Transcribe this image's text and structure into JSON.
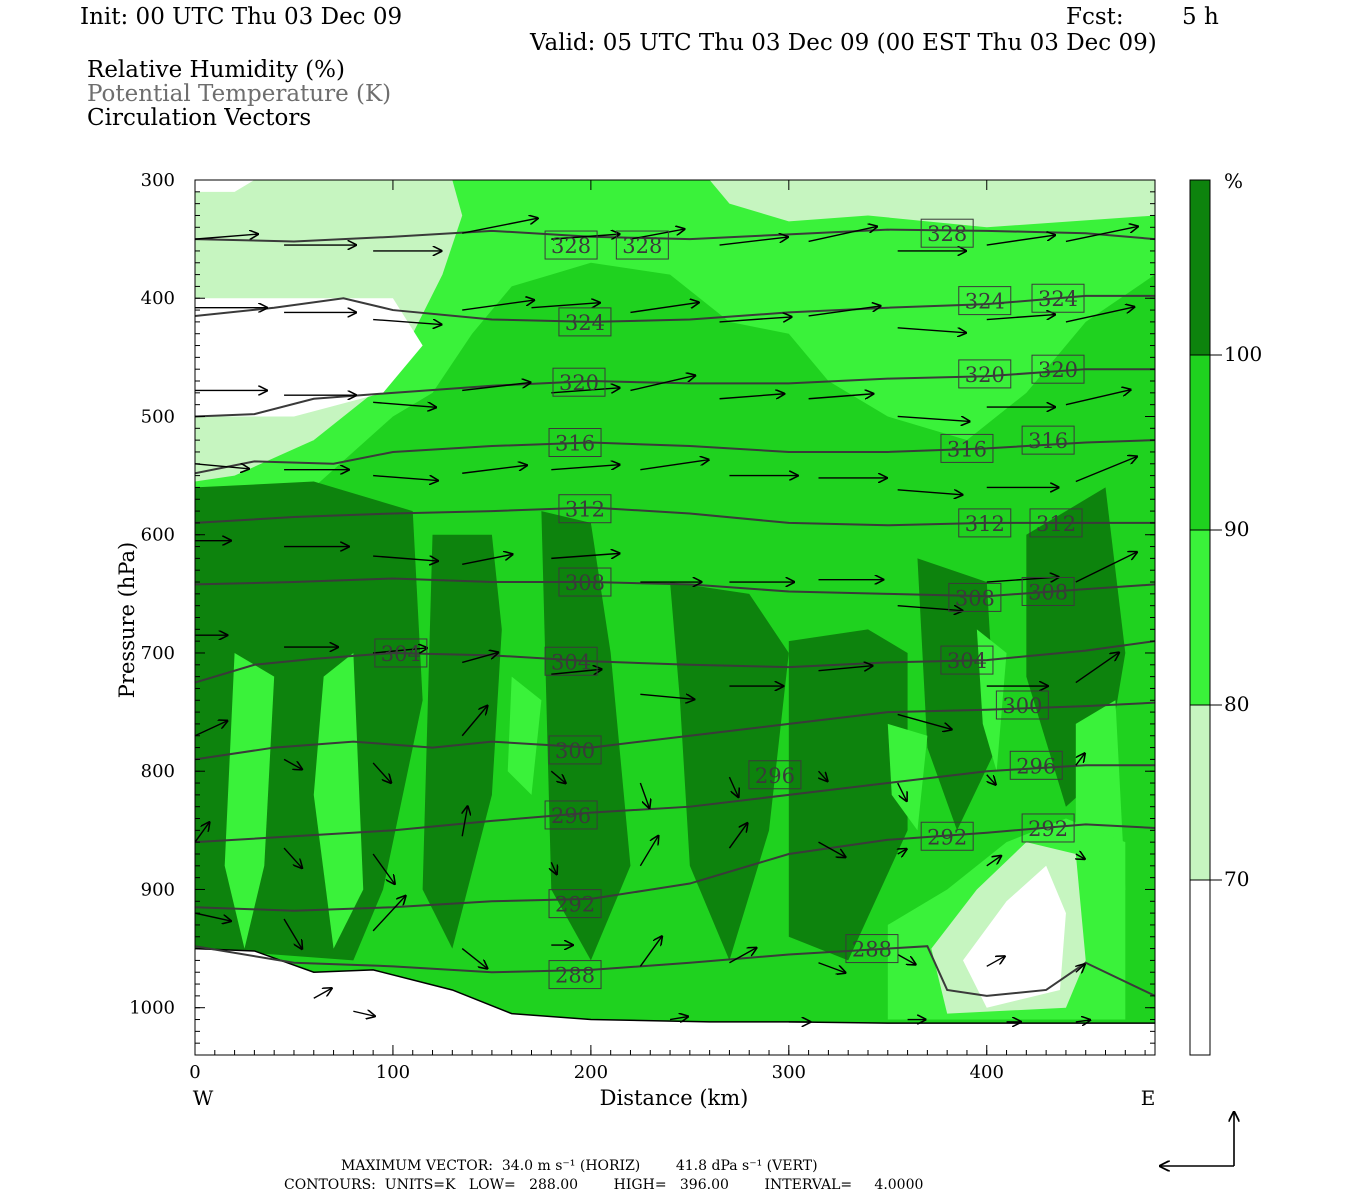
{
  "header": {
    "init": "Init: 00 UTC Thu 03 Dec 09",
    "fcst_label": "Fcst:",
    "fcst_value": "5 h",
    "valid": "Valid: 05 UTC Thu 03 Dec 09 (00 EST Thu 03 Dec 09)"
  },
  "fields": {
    "rh": "Relative Humidity (%)",
    "theta": "Potential Temperature (K)",
    "vectors": "Circulation Vectors"
  },
  "footer": {
    "max_vector": "MAXIMUM VECTOR:  34.0 m s⁻¹ (HORIZ)        41.8 dPa s⁻¹ (VERT)",
    "contours": "CONTOURS:  UNITS=K   LOW=   288.00        HIGH=   396.00        INTERVAL=     4.0000"
  },
  "colors": {
    "rh_70_80": "#c6f5c0",
    "rh_80_90": "#3af23a",
    "rh_90_100": "#1fd21f",
    "rh_100": "#0d830d",
    "theta_line": "#3a3a3a",
    "vector": "#000000"
  },
  "chart_data": {
    "type": "heatmap",
    "xlabel": "Distance (km)",
    "ylabel": "Pressure (hPa)",
    "x_left_label": "W",
    "x_right_label": "E",
    "xlim": [
      0,
      485
    ],
    "ylim": [
      1040,
      300
    ],
    "x_ticks": [
      0,
      100,
      200,
      300,
      400
    ],
    "y_ticks": [
      300,
      400,
      500,
      600,
      700,
      800,
      900,
      1000
    ],
    "colorbar": {
      "unit": "%",
      "levels": [
        70,
        80,
        90,
        100
      ],
      "band_colors": [
        "#ffffff",
        "#c6f5c0",
        "#3af23a",
        "#1fd21f",
        "#0d830d"
      ]
    },
    "theta_contours": [
      {
        "value": "328",
        "label_x": [
          190,
          226,
          380
        ],
        "label_y": [
          355,
          355,
          345
        ],
        "points": [
          [
            0,
            350
          ],
          [
            50,
            352
          ],
          [
            100,
            348
          ],
          [
            150,
            343
          ],
          [
            200,
            348
          ],
          [
            250,
            350
          ],
          [
            300,
            346
          ],
          [
            350,
            342
          ],
          [
            400,
            343
          ],
          [
            450,
            345
          ],
          [
            485,
            350
          ]
        ]
      },
      {
        "value": "324",
        "label_x": [
          197,
          399,
          436
        ],
        "label_y": [
          420,
          402,
          400
        ],
        "points": [
          [
            0,
            415
          ],
          [
            40,
            408
          ],
          [
            75,
            400
          ],
          [
            100,
            410
          ],
          [
            150,
            418
          ],
          [
            200,
            420
          ],
          [
            250,
            418
          ],
          [
            300,
            412
          ],
          [
            350,
            408
          ],
          [
            400,
            405
          ],
          [
            450,
            398
          ],
          [
            485,
            398
          ]
        ]
      },
      {
        "value": "320",
        "label_x": [
          194,
          399,
          436
        ],
        "label_y": [
          471,
          464,
          460
        ],
        "points": [
          [
            0,
            500
          ],
          [
            30,
            498
          ],
          [
            60,
            485
          ],
          [
            100,
            480
          ],
          [
            150,
            474
          ],
          [
            200,
            470
          ],
          [
            250,
            472
          ],
          [
            300,
            472
          ],
          [
            350,
            468
          ],
          [
            400,
            466
          ],
          [
            450,
            460
          ],
          [
            485,
            460
          ]
        ]
      },
      {
        "value": "316",
        "label_x": [
          192,
          390,
          431
        ],
        "label_y": [
          522,
          527,
          520
        ],
        "points": [
          [
            0,
            548
          ],
          [
            30,
            538
          ],
          [
            70,
            540
          ],
          [
            100,
            530
          ],
          [
            150,
            525
          ],
          [
            200,
            522
          ],
          [
            250,
            525
          ],
          [
            300,
            530
          ],
          [
            350,
            530
          ],
          [
            400,
            527
          ],
          [
            450,
            522
          ],
          [
            485,
            520
          ]
        ]
      },
      {
        "value": "312",
        "label_x": [
          197,
          399,
          435
        ],
        "label_y": [
          578,
          590,
          590
        ],
        "points": [
          [
            0,
            590
          ],
          [
            50,
            585
          ],
          [
            100,
            582
          ],
          [
            150,
            580
          ],
          [
            200,
            577
          ],
          [
            250,
            582
          ],
          [
            300,
            590
          ],
          [
            350,
            592
          ],
          [
            400,
            590
          ],
          [
            450,
            590
          ],
          [
            485,
            590
          ]
        ]
      },
      {
        "value": "308",
        "label_x": [
          197,
          394,
          431
        ],
        "label_y": [
          640,
          653,
          648
        ],
        "points": [
          [
            0,
            642
          ],
          [
            50,
            640
          ],
          [
            100,
            637
          ],
          [
            150,
            640
          ],
          [
            200,
            640
          ],
          [
            250,
            642
          ],
          [
            300,
            648
          ],
          [
            350,
            650
          ],
          [
            400,
            652
          ],
          [
            450,
            646
          ],
          [
            485,
            642
          ]
        ]
      },
      {
        "value": "304",
        "label_x": [
          104,
          190,
          390
        ],
        "label_y": [
          700,
          707,
          706
        ],
        "points": [
          [
            0,
            725
          ],
          [
            30,
            710
          ],
          [
            60,
            705
          ],
          [
            100,
            700
          ],
          [
            150,
            702
          ],
          [
            200,
            707
          ],
          [
            250,
            710
          ],
          [
            300,
            712
          ],
          [
            350,
            708
          ],
          [
            400,
            706
          ],
          [
            450,
            698
          ],
          [
            485,
            690
          ]
        ]
      },
      {
        "value": "300",
        "label_x": [
          192,
          418
        ],
        "label_y": [
          782,
          744
        ],
        "points": [
          [
            0,
            790
          ],
          [
            40,
            780
          ],
          [
            80,
            775
          ],
          [
            120,
            780
          ],
          [
            150,
            775
          ],
          [
            200,
            780
          ],
          [
            250,
            770
          ],
          [
            300,
            760
          ],
          [
            350,
            750
          ],
          [
            400,
            748
          ],
          [
            450,
            745
          ],
          [
            485,
            742
          ]
        ]
      },
      {
        "value": "296",
        "label_x": [
          190,
          293,
          425
        ],
        "label_y": [
          837,
          803,
          795
        ],
        "points": [
          [
            0,
            860
          ],
          [
            50,
            855
          ],
          [
            100,
            850
          ],
          [
            150,
            842
          ],
          [
            200,
            835
          ],
          [
            250,
            830
          ],
          [
            300,
            820
          ],
          [
            350,
            810
          ],
          [
            400,
            800
          ],
          [
            450,
            795
          ],
          [
            485,
            795
          ]
        ]
      },
      {
        "value": "292",
        "label_x": [
          192,
          380,
          431
        ],
        "label_y": [
          912,
          855,
          848
        ],
        "points": [
          [
            0,
            915
          ],
          [
            50,
            918
          ],
          [
            100,
            915
          ],
          [
            150,
            910
          ],
          [
            200,
            908
          ],
          [
            250,
            895
          ],
          [
            300,
            870
          ],
          [
            350,
            858
          ],
          [
            400,
            852
          ],
          [
            450,
            845
          ],
          [
            485,
            848
          ]
        ]
      },
      {
        "value": "288",
        "label_x": [
          192,
          342
        ],
        "label_y": [
          972,
          950
        ],
        "points": [
          [
            0,
            948
          ],
          [
            50,
            962
          ],
          [
            100,
            965
          ],
          [
            150,
            970
          ],
          [
            200,
            968
          ],
          [
            250,
            962
          ],
          [
            300,
            955
          ],
          [
            350,
            950
          ],
          [
            370,
            948
          ],
          [
            380,
            985
          ],
          [
            400,
            990
          ],
          [
            430,
            985
          ],
          [
            450,
            962
          ],
          [
            485,
            990
          ]
        ]
      }
    ],
    "rh_fields": {
      "unit": "%",
      "regions": [
        {
          "band": "70-80",
          "note": "upper troposphere above ~380 hPa west of 120 km"
        },
        {
          "band": "<70",
          "note": "dry slot 400-500 hPa west of 110 km and near-surface pocket at 380-420 km"
        },
        {
          "band": "90-100",
          "note": "mid and lower troposphere 520-1000 hPa"
        },
        {
          "band": ">100",
          "note": "saturated columns 550-960 hPa"
        }
      ]
    },
    "vectors": [
      [
        0,
        350,
        35,
        -5
      ],
      [
        45,
        355,
        40,
        0
      ],
      [
        90,
        360,
        38,
        0
      ],
      [
        135,
        345,
        42,
        -15
      ],
      [
        180,
        350,
        38,
        -5
      ],
      [
        220,
        350,
        30,
        -10
      ],
      [
        265,
        355,
        38,
        -8
      ],
      [
        310,
        352,
        38,
        -15
      ],
      [
        355,
        360,
        38,
        0
      ],
      [
        400,
        355,
        38,
        -10
      ],
      [
        440,
        352,
        40,
        -15
      ],
      [
        0,
        408,
        40,
        0
      ],
      [
        45,
        412,
        40,
        0
      ],
      [
        90,
        418,
        38,
        5
      ],
      [
        135,
        410,
        40,
        -10
      ],
      [
        170,
        408,
        38,
        -5
      ],
      [
        220,
        412,
        38,
        -10
      ],
      [
        265,
        420,
        40,
        -5
      ],
      [
        310,
        415,
        40,
        -10
      ],
      [
        355,
        425,
        38,
        5
      ],
      [
        400,
        418,
        38,
        -5
      ],
      [
        440,
        420,
        38,
        -15
      ],
      [
        0,
        478,
        40,
        0
      ],
      [
        45,
        482,
        40,
        0
      ],
      [
        90,
        488,
        35,
        5
      ],
      [
        135,
        478,
        38,
        -8
      ],
      [
        180,
        480,
        38,
        -5
      ],
      [
        220,
        478,
        36,
        -15
      ],
      [
        265,
        485,
        36,
        -5
      ],
      [
        310,
        485,
        36,
        -5
      ],
      [
        355,
        500,
        40,
        5
      ],
      [
        400,
        492,
        38,
        0
      ],
      [
        440,
        490,
        36,
        -15
      ],
      [
        0,
        540,
        30,
        5
      ],
      [
        45,
        545,
        36,
        0
      ],
      [
        90,
        550,
        36,
        5
      ],
      [
        135,
        548,
        36,
        -8
      ],
      [
        180,
        545,
        38,
        -5
      ],
      [
        225,
        545,
        38,
        -10
      ],
      [
        270,
        550,
        38,
        0
      ],
      [
        315,
        552,
        38,
        0
      ],
      [
        355,
        562,
        36,
        5
      ],
      [
        400,
        560,
        40,
        0
      ],
      [
        445,
        555,
        34,
        -25
      ],
      [
        0,
        605,
        20,
        0
      ],
      [
        45,
        610,
        36,
        0
      ],
      [
        90,
        618,
        36,
        5
      ],
      [
        135,
        625,
        28,
        -10
      ],
      [
        180,
        620,
        38,
        -5
      ],
      [
        225,
        640,
        34,
        0
      ],
      [
        270,
        640,
        36,
        0
      ],
      [
        315,
        638,
        36,
        0
      ],
      [
        355,
        660,
        36,
        5
      ],
      [
        400,
        640,
        40,
        -5
      ],
      [
        445,
        640,
        34,
        -30
      ],
      [
        0,
        685,
        18,
        0
      ],
      [
        45,
        695,
        30,
        0
      ],
      [
        90,
        700,
        30,
        -5
      ],
      [
        135,
        708,
        20,
        -10
      ],
      [
        180,
        718,
        28,
        -5
      ],
      [
        225,
        735,
        30,
        5
      ],
      [
        270,
        728,
        30,
        0
      ],
      [
        315,
        715,
        30,
        -5
      ],
      [
        355,
        752,
        30,
        15
      ],
      [
        400,
        728,
        34,
        0
      ],
      [
        445,
        725,
        24,
        -30
      ],
      [
        0,
        770,
        18,
        -15
      ],
      [
        45,
        790,
        10,
        10
      ],
      [
        90,
        793,
        10,
        20
      ],
      [
        135,
        770,
        14,
        -30
      ],
      [
        180,
        800,
        8,
        12
      ],
      [
        225,
        810,
        5,
        25
      ],
      [
        270,
        805,
        5,
        20
      ],
      [
        315,
        800,
        5,
        10
      ],
      [
        355,
        810,
        5,
        18
      ],
      [
        400,
        803,
        5,
        10
      ],
      [
        445,
        795,
        5,
        -12
      ],
      [
        0,
        860,
        8,
        -20
      ],
      [
        45,
        865,
        10,
        20
      ],
      [
        90,
        870,
        12,
        30
      ],
      [
        135,
        855,
        3,
        -30
      ],
      [
        180,
        877,
        3,
        12
      ],
      [
        225,
        880,
        10,
        -30
      ],
      [
        270,
        865,
        10,
        -25
      ],
      [
        315,
        860,
        15,
        15
      ],
      [
        355,
        870,
        5,
        -5
      ],
      [
        400,
        880,
        8,
        -10
      ],
      [
        445,
        870,
        5,
        5
      ],
      [
        0,
        920,
        20,
        8
      ],
      [
        45,
        925,
        10,
        30
      ],
      [
        90,
        935,
        18,
        -35
      ],
      [
        135,
        950,
        14,
        20
      ],
      [
        180,
        947,
        12,
        0
      ],
      [
        225,
        965,
        12,
        -30
      ],
      [
        270,
        962,
        15,
        -15
      ],
      [
        315,
        962,
        15,
        10
      ],
      [
        355,
        955,
        10,
        10
      ],
      [
        400,
        965,
        10,
        -10
      ],
      [
        445,
        970,
        5,
        -8
      ],
      [
        60,
        992,
        10,
        -10
      ],
      [
        80,
        1003,
        12,
        5
      ],
      [
        240,
        1010,
        10,
        -3
      ],
      [
        300,
        1012,
        12,
        0
      ],
      [
        360,
        1010,
        10,
        0
      ],
      [
        410,
        1012,
        8,
        0
      ],
      [
        445,
        1012,
        8,
        -2
      ]
    ],
    "arrow_scale_horiz": "34.0 m s⁻¹",
    "arrow_scale_vert": "41.8 dPa s⁻¹"
  }
}
